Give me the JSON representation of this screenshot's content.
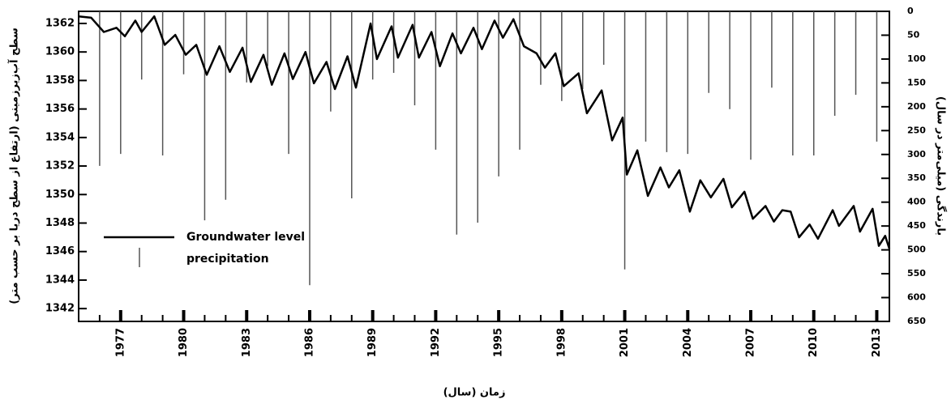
{
  "chart_data": {
    "type": "line",
    "xlabel": "زمان (سال)",
    "ylabel": "سطح آب‌زیرزمینی (ارتفاع از سطح دریا بر حسب متر)",
    "y2label": "بارندگی (میلی‌متر در سال)",
    "xlim": [
      1975,
      2013.6
    ],
    "xticks": [
      1977,
      1980,
      1983,
      1986,
      1989,
      1992,
      1995,
      1998,
      2001,
      2004,
      2007,
      2010,
      2013
    ],
    "xminorticks": [
      1976,
      1977,
      1978,
      1979,
      1980,
      1981,
      1982,
      1983,
      1984,
      1985,
      1986,
      1987,
      1988,
      1989,
      1990,
      1991,
      1992,
      1993,
      1994,
      1995,
      1996,
      1997,
      1998,
      1999,
      2000,
      2001,
      2002,
      2003,
      2004,
      2005,
      2006,
      2007,
      2008,
      2009,
      2010,
      2011,
      2012,
      2013
    ],
    "ylim": [
      1341.1,
      1362.85
    ],
    "yticks": [
      1342,
      1344,
      1346,
      1348,
      1350,
      1352,
      1354,
      1356,
      1358,
      1360,
      1362
    ],
    "y2lim": [
      650,
      0
    ],
    "y2ticks": [
      0,
      50,
      100,
      150,
      200,
      250,
      300,
      350,
      400,
      450,
      500,
      550,
      600,
      650
    ],
    "legend": "lower left",
    "series": [
      {
        "name": "Groundwater level",
        "type": "line",
        "color": "#000000",
        "x": [
          1975.0,
          1975.6,
          1976.2,
          1976.8,
          1977.2,
          1977.7,
          1978.0,
          1978.6,
          1979.1,
          1979.6,
          1980.1,
          1980.6,
          1981.1,
          1981.7,
          1982.2,
          1982.8,
          1983.2,
          1983.8,
          1984.2,
          1984.8,
          1985.2,
          1985.8,
          1986.2,
          1986.8,
          1987.2,
          1987.8,
          1988.2,
          1988.9,
          1989.2,
          1989.9,
          1990.2,
          1990.9,
          1991.2,
          1991.8,
          1992.2,
          1992.8,
          1993.2,
          1993.8,
          1994.2,
          1994.8,
          1995.2,
          1995.7,
          1996.2,
          1996.8,
          1997.2,
          1997.7,
          1998.1,
          1998.8,
          1999.2,
          1999.9,
          2000.4,
          2000.9,
          2001.1,
          2001.6,
          2002.1,
          2002.7,
          2003.1,
          2003.6,
          2004.1,
          2004.6,
          2005.1,
          2005.7,
          2006.1,
          2006.7,
          2007.1,
          2007.7,
          2008.1,
          2008.5,
          2008.9,
          2009.3,
          2009.8,
          2010.2,
          2010.9,
          2011.2,
          2011.9,
          2012.2,
          2012.8,
          2013.1,
          2013.4,
          2013.6
        ],
        "values": [
          1362.5,
          1362.4,
          1361.4,
          1361.7,
          1361.1,
          1362.2,
          1361.4,
          1362.5,
          1360.5,
          1361.2,
          1359.8,
          1360.5,
          1358.4,
          1360.4,
          1358.6,
          1360.3,
          1357.9,
          1359.8,
          1357.7,
          1359.9,
          1358.1,
          1360.0,
          1357.8,
          1359.3,
          1357.4,
          1359.7,
          1357.5,
          1362.0,
          1359.5,
          1361.8,
          1359.6,
          1361.9,
          1359.6,
          1361.4,
          1359.0,
          1361.3,
          1359.9,
          1361.7,
          1360.2,
          1362.2,
          1361.0,
          1362.3,
          1360.4,
          1359.9,
          1358.9,
          1359.9,
          1357.6,
          1358.5,
          1355.7,
          1357.3,
          1353.8,
          1355.4,
          1351.4,
          1353.1,
          1349.9,
          1351.9,
          1350.5,
          1351.7,
          1348.8,
          1351.0,
          1349.8,
          1351.1,
          1349.1,
          1350.2,
          1348.3,
          1349.2,
          1348.1,
          1348.9,
          1348.8,
          1347.0,
          1347.9,
          1346.9,
          1348.9,
          1347.8,
          1349.2,
          1347.4,
          1349.0,
          1346.4,
          1347.1,
          1346.2
        ]
      },
      {
        "name": "precipitation",
        "type": "bar",
        "axis": "y2",
        "color": "#555555",
        "x": [
          1976,
          1977,
          1978,
          1979,
          1980,
          1981,
          1982,
          1983,
          1984,
          1985,
          1986,
          1987,
          1988,
          1989,
          1990,
          1991,
          1992,
          1993,
          1994,
          1995,
          1996,
          1997,
          1998,
          1999,
          2000,
          2001,
          2002,
          2003,
          2004,
          2005,
          2006,
          2007,
          2008,
          2009,
          2010,
          2011,
          2012,
          2013
        ],
        "values": [
          324,
          299,
          143,
          302,
          132,
          438,
          395,
          149,
          115,
          299,
          574,
          210,
          392,
          143,
          129,
          197,
          290,
          468,
          443,
          346,
          290,
          154,
          188,
          163,
          112,
          541,
          273,
          295,
          299,
          171,
          205,
          311,
          160,
          302,
          302,
          219,
          175,
          273
        ]
      }
    ]
  }
}
